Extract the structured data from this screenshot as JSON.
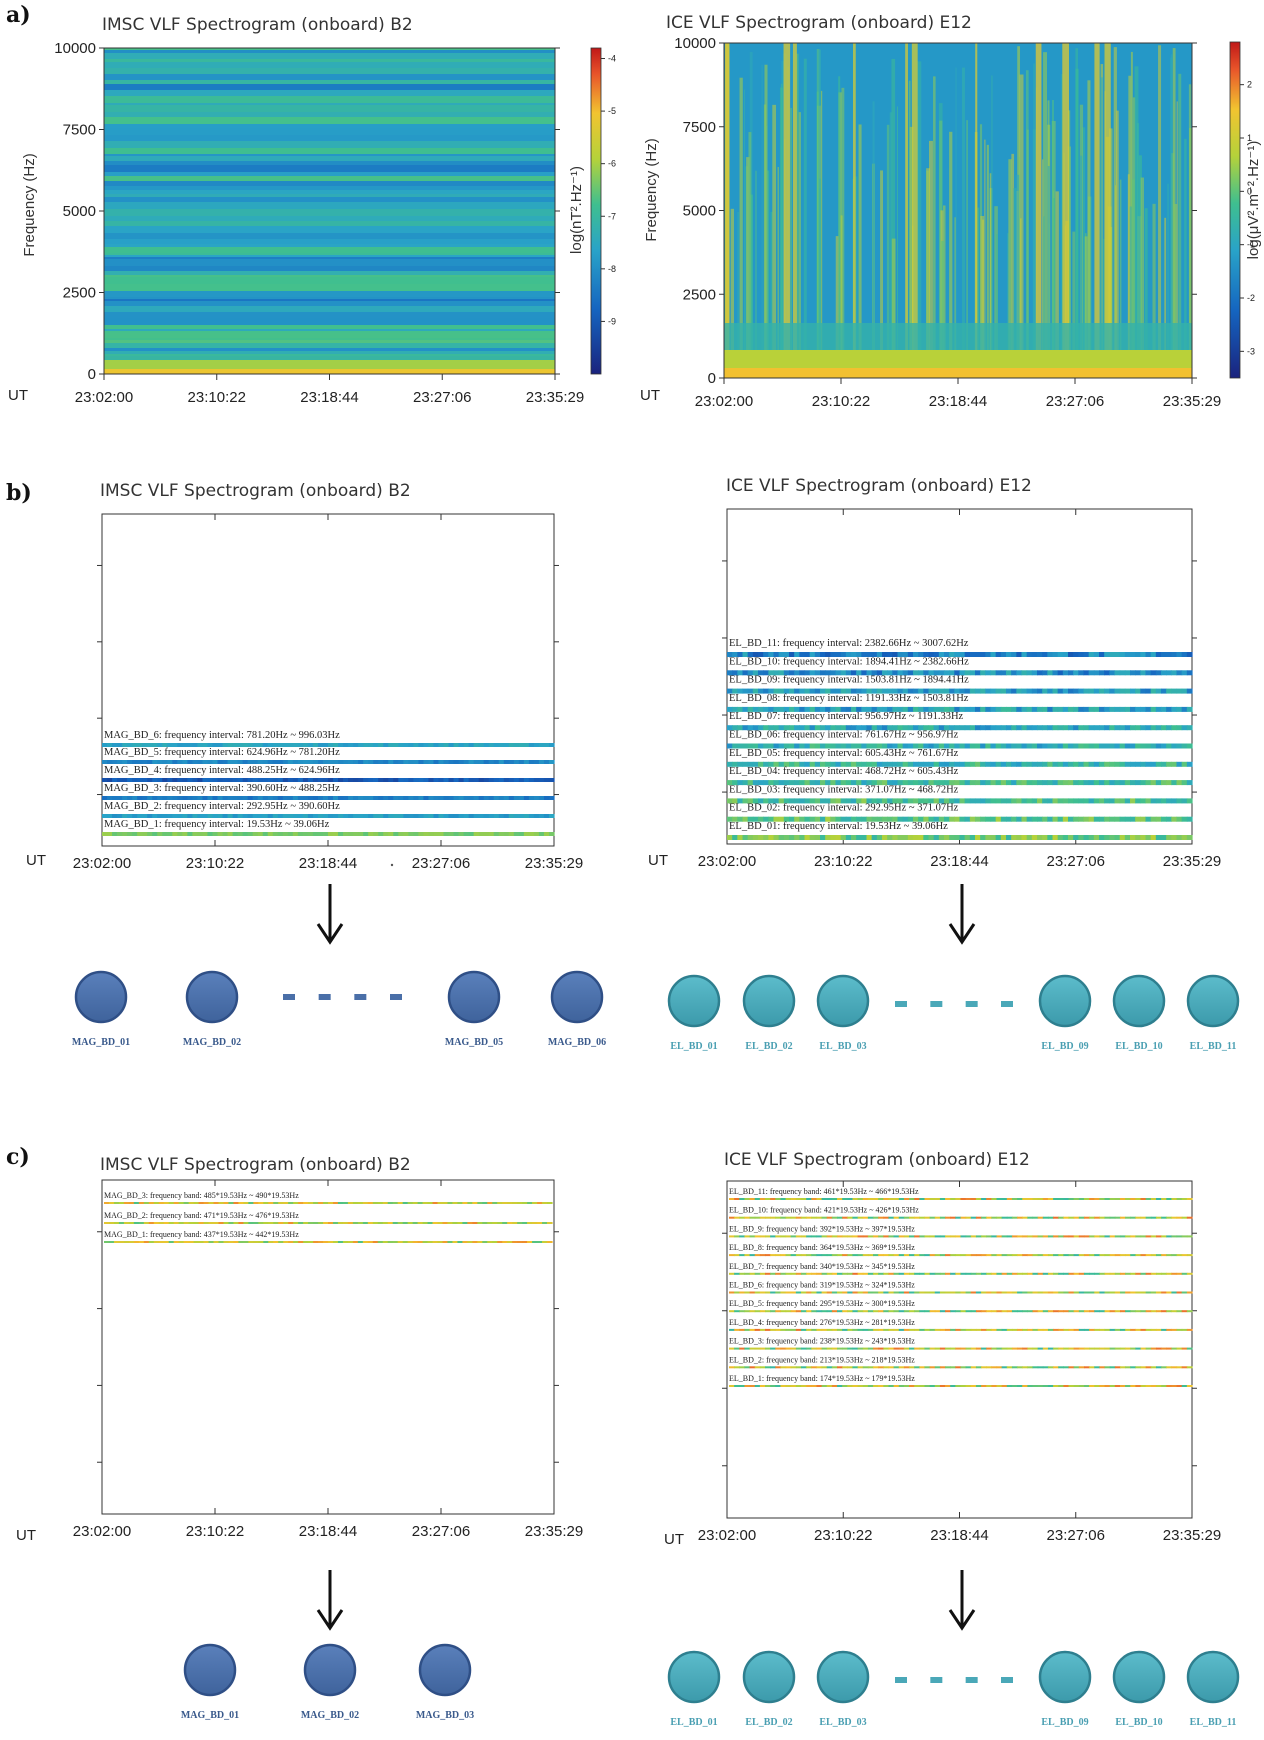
{
  "panel_labels": {
    "a": "a)",
    "b": "b)",
    "c": "c)"
  },
  "colors": {
    "mag_node": "#4a6fa8",
    "mag_node_stroke": "#2f4f86",
    "el_node": "#4aa8b8",
    "el_node_stroke": "#2e7f8f",
    "mag_text": "#3a5a8c",
    "el_text": "#4a9fb2"
  },
  "chart_data": [
    {
      "type": "heatmap",
      "panel": "a",
      "title": "IMSC VLF Spectrogram (onboard) B2",
      "xlabel": "UT",
      "ylabel": "Frequency (Hz)",
      "x_ticks": [
        "23:02:00",
        "23:10:22",
        "23:18:44",
        "23:27:06",
        "23:35:29"
      ],
      "y_ticks": [
        0,
        2500,
        5000,
        7500,
        10000
      ],
      "ylim": [
        0,
        10000
      ],
      "colorbar_label": "log(nT².Hz⁻¹)",
      "colorbar_ticks": [
        -4,
        -5,
        -6,
        -7,
        -8,
        -9
      ],
      "colorbar_range": [
        -10,
        -3.8
      ]
    },
    {
      "type": "heatmap",
      "panel": "a",
      "title": "ICE VLF Spectrogram (onboard) E12",
      "xlabel": "UT",
      "ylabel": "Frequency (Hz)",
      "x_ticks": [
        "23:02:00",
        "23:10:22",
        "23:18:44",
        "23:27:06",
        "23:35:29"
      ],
      "y_ticks": [
        0,
        2500,
        5000,
        7500,
        10000
      ],
      "ylim": [
        0,
        10000
      ],
      "colorbar_label": "log(μV².m⁻².Hz⁻¹)",
      "colorbar_ticks": [
        2,
        1,
        0,
        -1,
        -2,
        -3
      ],
      "colorbar_range": [
        -3.5,
        2.8
      ]
    },
    {
      "type": "heatmap",
      "panel": "b",
      "title": "IMSC VLF Spectrogram (onboard) B2",
      "xlabel": "UT",
      "x_ticks": [
        "23:02:00",
        "23:10:22",
        "23:18:44",
        "23:27:06",
        "23:35:29"
      ],
      "bands": [
        "MAG_BD_6: frequency interval: 781.20Hz ~ 996.03Hz",
        "MAG_BD_5: frequency interval: 624.96Hz ~ 781.20Hz",
        "MAG_BD_4: frequency interval: 488.25Hz ~ 624.96Hz",
        "MAG_BD_3: frequency interval: 390.60Hz ~ 488.25Hz",
        "MAG_BD_2: frequency interval: 292.95Hz ~ 390.60Hz",
        "MAG_BD_1: frequency interval: 19.53Hz ~ 39.06Hz"
      ]
    },
    {
      "type": "heatmap",
      "panel": "b",
      "title": "ICE VLF Spectrogram (onboard) E12",
      "xlabel": "UT",
      "x_ticks": [
        "23:02:00",
        "23:10:22",
        "23:18:44",
        "23:27:06",
        "23:35:29"
      ],
      "bands": [
        "EL_BD_11: frequency interval: 2382.66Hz ~ 3007.62Hz",
        "EL_BD_10: frequency interval: 1894.41Hz ~ 2382.66Hz",
        "EL_BD_09: frequency interval: 1503.81Hz ~ 1894.41Hz",
        "EL_BD_08: frequency interval: 1191.33Hz ~ 1503.81Hz",
        "EL_BD_07: frequency interval: 956.97Hz ~ 1191.33Hz",
        "EL_BD_06: frequency interval: 761.67Hz ~ 956.97Hz",
        "EL_BD_05: frequency interval: 605.43Hz ~ 761.67Hz",
        "EL_BD_04: frequency interval: 468.72Hz ~ 605.43Hz",
        "EL_BD_03: frequency interval: 371.07Hz ~ 468.72Hz",
        "EL_BD_02: frequency interval: 292.95Hz ~ 371.07Hz",
        "EL_BD_01: frequency interval: 19.53Hz ~ 39.06Hz"
      ]
    },
    {
      "type": "heatmap",
      "panel": "c",
      "title": "IMSC VLF Spectrogram (onboard) B2",
      "xlabel": "UT",
      "x_ticks": [
        "23:02:00",
        "23:10:22",
        "23:18:44",
        "23:27:06",
        "23:35:29"
      ],
      "bands": [
        "MAG_BD_3: frequency band: 485*19.53Hz ~ 490*19.53Hz",
        "MAG_BD_2: frequency band: 471*19.53Hz ~ 476*19.53Hz",
        "MAG_BD_1: frequency band: 437*19.53Hz ~ 442*19.53Hz"
      ]
    },
    {
      "type": "heatmap",
      "panel": "c",
      "title": "ICE VLF Spectrogram (onboard) E12",
      "xlabel": "UT",
      "x_ticks": [
        "23:02:00",
        "23:10:22",
        "23:18:44",
        "23:27:06",
        "23:35:29"
      ],
      "bands": [
        "EL_BD_11: frequency band: 461*19.53Hz ~ 466*19.53Hz",
        "EL_BD_10: frequency band: 421*19.53Hz ~ 426*19.53Hz",
        "EL_BD_9: frequency band: 392*19.53Hz ~ 397*19.53Hz",
        "EL_BD_8: frequency band: 364*19.53Hz ~ 369*19.53Hz",
        "EL_BD_7: frequency band: 340*19.53Hz ~ 345*19.53Hz",
        "EL_BD_6: frequency band: 319*19.53Hz ~ 324*19.53Hz",
        "EL_BD_5: frequency band: 295*19.53Hz ~ 300*19.53Hz",
        "EL_BD_4: frequency band: 276*19.53Hz ~ 281*19.53Hz",
        "EL_BD_3: frequency band: 238*19.53Hz ~ 243*19.53Hz",
        "EL_BD_2: frequency band: 213*19.53Hz ~ 218*19.53Hz",
        "EL_BD_1: frequency band: 174*19.53Hz ~ 179*19.53Hz"
      ]
    }
  ],
  "nodes": {
    "b_mag": [
      "MAG_BD_01",
      "MAG_BD_02",
      "MAG_BD_05",
      "MAG_BD_06"
    ],
    "b_el": [
      "EL_BD_01",
      "EL_BD_02",
      "EL_BD_03",
      "EL_BD_09",
      "EL_BD_10",
      "EL_BD_11"
    ],
    "c_mag": [
      "MAG_BD_01",
      "MAG_BD_02",
      "MAG_BD_03"
    ],
    "c_el": [
      "EL_BD_01",
      "EL_BD_02",
      "EL_BD_03",
      "EL_BD_09",
      "EL_BD_10",
      "EL_BD_11"
    ]
  }
}
